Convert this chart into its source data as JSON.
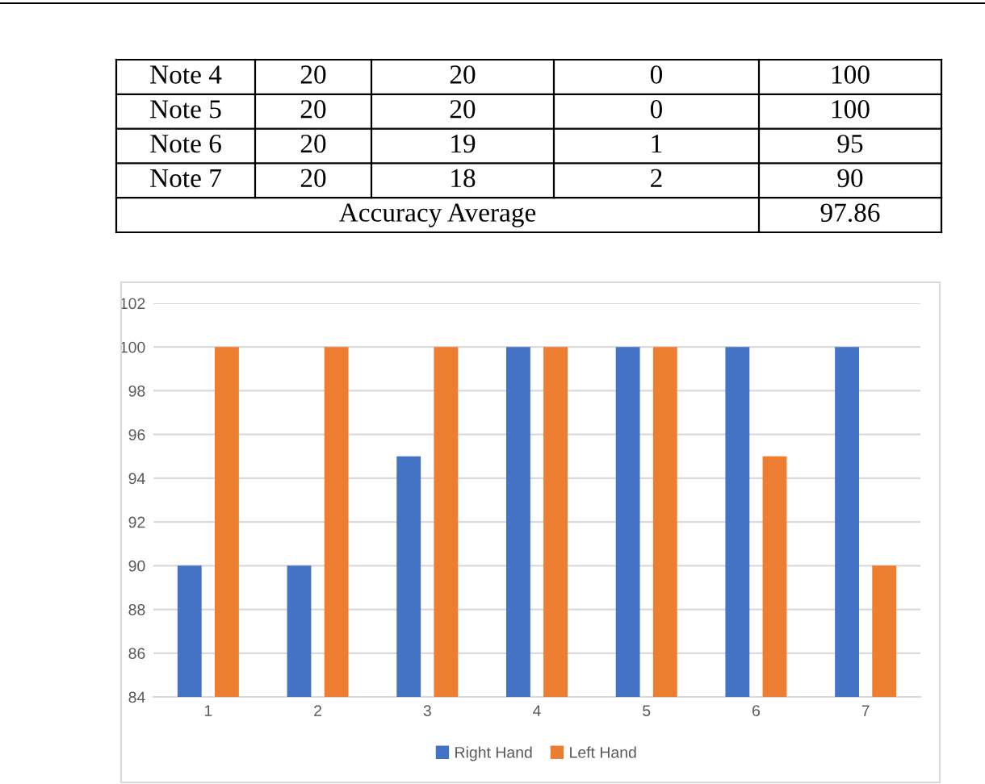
{
  "chart_data": {
    "type": "bar",
    "categories": [
      "1",
      "2",
      "3",
      "4",
      "5",
      "6",
      "7"
    ],
    "series": [
      {
        "name": "Right Hand",
        "color": "#4472c4",
        "values": [
          90,
          90,
          95,
          100,
          100,
          100,
          100
        ]
      },
      {
        "name": "Left Hand",
        "color": "#ed7d31",
        "values": [
          100,
          100,
          100,
          100,
          100,
          95,
          90
        ]
      }
    ],
    "ylim": [
      84,
      102
    ],
    "yticks": [
      84,
      86,
      88,
      90,
      92,
      94,
      96,
      98,
      100,
      102
    ],
    "grid": "y",
    "legend": "bottom",
    "annotations": [
      "Note 4",
      "20",
      "20",
      "0",
      "100",
      "Note 5",
      "20",
      "20",
      "0",
      "100",
      "Note 6",
      "20",
      "19",
      "1",
      "95",
      "Note 7",
      "20",
      "18",
      "2",
      "90",
      "Accuracy Average",
      "97.86"
    ]
  }
}
